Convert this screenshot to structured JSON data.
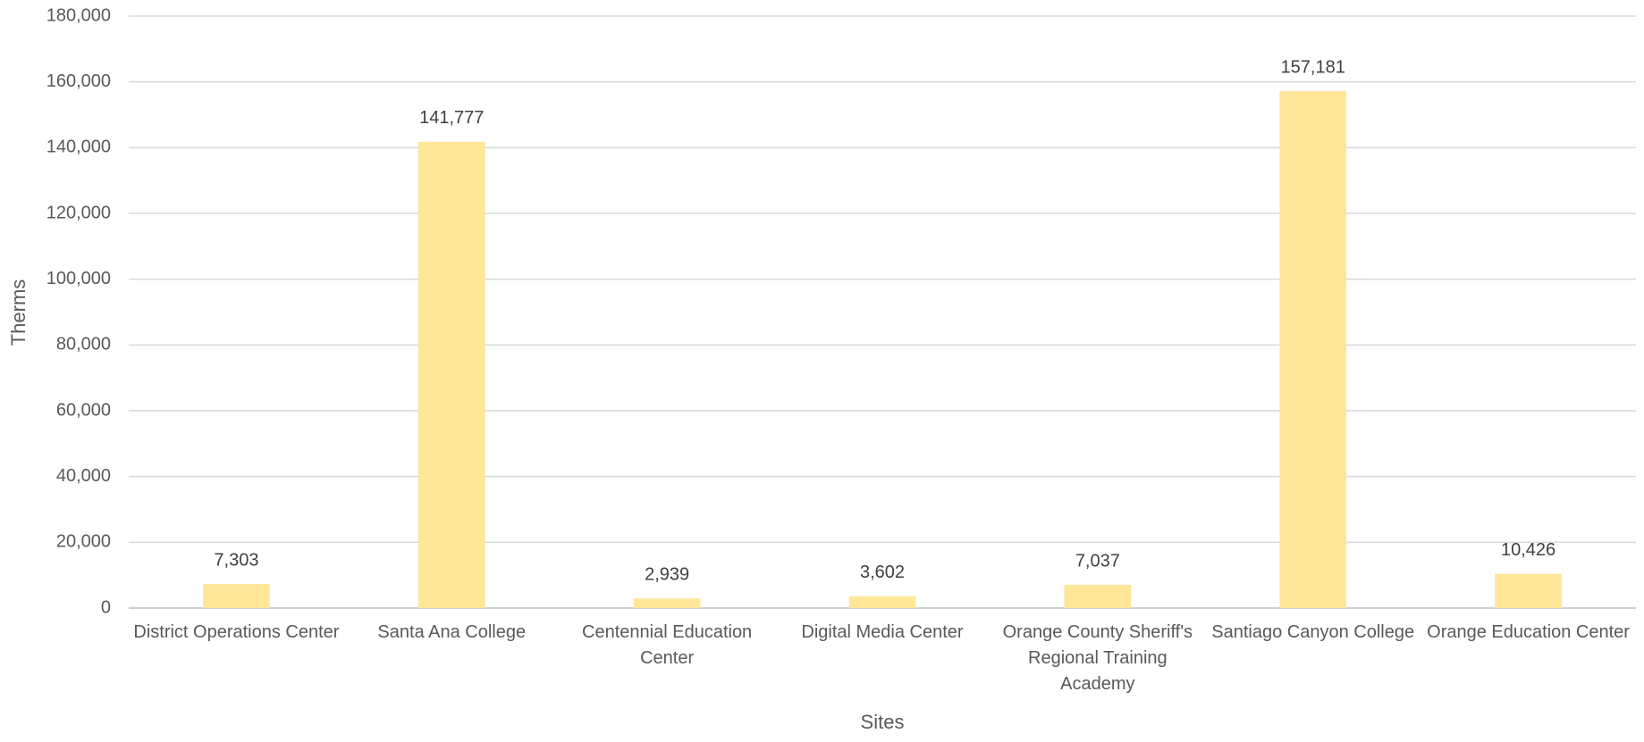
{
  "chart_data": {
    "type": "bar",
    "x_label": "Sites",
    "y_label": "Therms",
    "categories": [
      "District Operations Center",
      "Santa Ana College",
      "Centennial Education Center",
      "Digital Media Center",
      "Orange County Sheriff's Regional Training Academy",
      "Santiago Canyon College",
      "Orange Education Center"
    ],
    "values": [
      7303,
      141777,
      2939,
      3602,
      7037,
      157181,
      10426
    ],
    "value_labels": [
      "7,303",
      "141,777",
      "2,939",
      "3,602",
      "7,037",
      "157,181",
      "10,426"
    ],
    "color": "#ffe699",
    "ylim": [
      0,
      180000
    ],
    "yticks": [
      0,
      {
        "value": 20000,
        "label": "20,000"
      },
      {
        "value": 40000,
        "label": "40,000"
      },
      {
        "value": 60000,
        "label": "60,000"
      },
      {
        "value": 80000,
        "label": "80,000"
      },
      {
        "value": 100000,
        "label": "100,000"
      },
      {
        "value": 120000,
        "label": "120,000"
      },
      {
        "value": 140000,
        "label": "140,000"
      },
      {
        "value": 160000,
        "label": "160,000"
      },
      {
        "value": 180000,
        "label": "180,000"
      }
    ],
    "grid": true
  }
}
